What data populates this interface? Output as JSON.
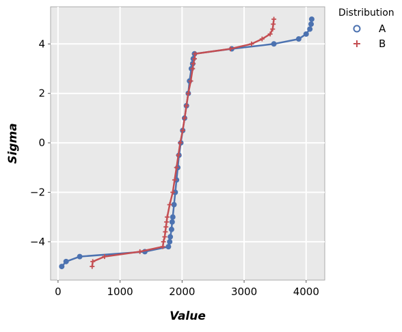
{
  "chart_data": {
    "type": "scatter",
    "title": "",
    "xlabel": "Value",
    "ylabel": "Sigma",
    "xlim": [
      -120,
      4300
    ],
    "ylim": [
      -5.55,
      5.5
    ],
    "xticks": [
      0,
      1000,
      2000,
      3000,
      4000
    ],
    "yticks": [
      -4,
      -2,
      0,
      2,
      4
    ],
    "xtick_labels": [
      "0",
      "1000",
      "2000",
      "3000",
      "4000"
    ],
    "ytick_labels": [
      "−4",
      "−2",
      "0",
      "2",
      "4"
    ],
    "grid": true,
    "background": "#e9e9e9",
    "legend": {
      "title": "Distribution",
      "position": "outside-right-top"
    },
    "series": [
      {
        "name": "A",
        "color": "#4c72b0",
        "marker": "circle",
        "points": [
          [
            60,
            -5.0
          ],
          [
            130,
            -4.8
          ],
          [
            350,
            -4.6
          ],
          [
            1400,
            -4.4
          ],
          [
            1780,
            -4.2
          ],
          [
            1800,
            -4.0
          ],
          [
            1810,
            -3.8
          ],
          [
            1830,
            -3.5
          ],
          [
            1840,
            -3.2
          ],
          [
            1850,
            -3.0
          ],
          [
            1870,
            -2.5
          ],
          [
            1890,
            -2.0
          ],
          [
            1910,
            -1.5
          ],
          [
            1930,
            -1.0
          ],
          [
            1950,
            -0.5
          ],
          [
            1980,
            0.0
          ],
          [
            2010,
            0.5
          ],
          [
            2040,
            1.0
          ],
          [
            2070,
            1.5
          ],
          [
            2100,
            2.0
          ],
          [
            2120,
            2.5
          ],
          [
            2150,
            3.0
          ],
          [
            2170,
            3.2
          ],
          [
            2180,
            3.4
          ],
          [
            2200,
            3.6
          ],
          [
            2800,
            3.8
          ],
          [
            3480,
            4.0
          ],
          [
            3880,
            4.2
          ],
          [
            4000,
            4.4
          ],
          [
            4060,
            4.6
          ],
          [
            4080,
            4.8
          ],
          [
            4090,
            5.0
          ]
        ]
      },
      {
        "name": "B",
        "color": "#c44e52",
        "marker": "plus",
        "points": [
          [
            550,
            -5.0
          ],
          [
            560,
            -4.8
          ],
          [
            750,
            -4.6
          ],
          [
            1320,
            -4.4
          ],
          [
            1690,
            -4.2
          ],
          [
            1700,
            -4.0
          ],
          [
            1720,
            -3.8
          ],
          [
            1730,
            -3.6
          ],
          [
            1740,
            -3.4
          ],
          [
            1750,
            -3.2
          ],
          [
            1760,
            -3.0
          ],
          [
            1800,
            -2.5
          ],
          [
            1850,
            -2.0
          ],
          [
            1880,
            -1.5
          ],
          [
            1910,
            -1.0
          ],
          [
            1940,
            -0.5
          ],
          [
            1970,
            0.0
          ],
          [
            2010,
            0.5
          ],
          [
            2040,
            1.0
          ],
          [
            2070,
            1.5
          ],
          [
            2100,
            2.0
          ],
          [
            2140,
            2.5
          ],
          [
            2170,
            3.0
          ],
          [
            2180,
            3.2
          ],
          [
            2200,
            3.4
          ],
          [
            2210,
            3.6
          ],
          [
            2780,
            3.8
          ],
          [
            3120,
            4.0
          ],
          [
            3290,
            4.2
          ],
          [
            3420,
            4.4
          ],
          [
            3460,
            4.6
          ],
          [
            3470,
            4.8
          ],
          [
            3480,
            5.0
          ]
        ]
      }
    ]
  }
}
